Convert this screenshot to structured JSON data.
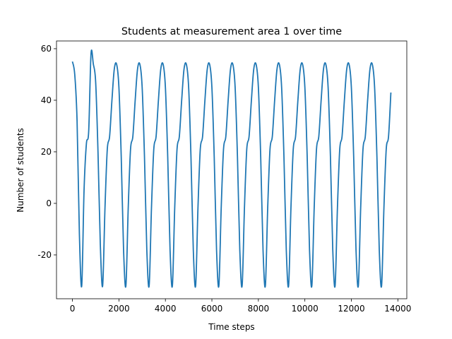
{
  "chart_data": {
    "type": "line",
    "title": "Students at measurement area 1 over time",
    "xlabel": "Time steps",
    "ylabel": "Number of students",
    "x": [
      0,
      100,
      200,
      300,
      400,
      500,
      600,
      700,
      800,
      900,
      1000,
      1100,
      1200,
      1300,
      1400,
      1500,
      1600,
      1700,
      1800,
      1900,
      2000,
      2100,
      2200,
      2300,
      2400,
      2500,
      2600,
      2700,
      2800,
      2900,
      3000,
      3100,
      3200,
      3300,
      3400,
      3500,
      3600,
      3700,
      3800,
      3900,
      4000,
      4100,
      4200,
      4300,
      4400,
      4500,
      4600,
      4700,
      4800,
      4900,
      5000,
      5100,
      5200,
      5300,
      5400,
      5500,
      5600,
      5700,
      5800,
      5900,
      6000,
      6100,
      6200,
      6300,
      6400,
      6500,
      6600,
      6700,
      6800,
      6900,
      7000,
      7100,
      7200,
      7300,
      7400,
      7500,
      7600,
      7700,
      7800,
      7900,
      8000,
      8100,
      8200,
      8300,
      8400,
      8500,
      8600,
      8700,
      8800,
      8900,
      9000,
      9100,
      9200,
      9300,
      9400,
      9500,
      9600,
      9700,
      9800,
      9900,
      10000,
      10100,
      10200,
      10300,
      10400,
      10500,
      10600,
      10700,
      10800,
      10900,
      11000,
      11100,
      11200,
      11300,
      11400,
      11500,
      11600,
      11700,
      11800,
      11900,
      12000,
      12100,
      12200,
      12300,
      12400,
      12500,
      12600,
      12700,
      12800,
      12900,
      13000,
      13100,
      13200,
      13300,
      13400,
      13500,
      13600,
      13700
    ],
    "series": [
      {
        "name": "students",
        "color": "#1f77b4",
        "values": [
          55,
          50,
          32,
          -12,
          -32,
          5,
          23,
          28,
          58,
          54,
          47,
          20,
          -16,
          -32,
          -2,
          21,
          26,
          40,
          52,
          54,
          45,
          18,
          -18,
          -32,
          -2,
          21,
          26,
          40,
          52,
          54,
          45,
          18,
          -18,
          -32,
          -2,
          21,
          26,
          40,
          52,
          54,
          45,
          18,
          -18,
          -32,
          -2,
          21,
          26,
          40,
          52,
          54,
          45,
          18,
          -18,
          -32,
          -2,
          21,
          26,
          40,
          52,
          54,
          45,
          18,
          -18,
          -32,
          -2,
          21,
          26,
          40,
          52,
          54,
          45,
          18,
          -18,
          -32,
          -2,
          21,
          26,
          40,
          52,
          54,
          45,
          18,
          -18,
          -32,
          -2,
          21,
          26,
          40,
          52,
          54,
          45,
          18,
          -18,
          -32,
          -2,
          21,
          26,
          40,
          52,
          54,
          45,
          18,
          -18,
          -32,
          -2,
          21,
          26,
          40,
          52,
          54,
          45,
          18,
          -18,
          -32,
          -2,
          21,
          26,
          40,
          52,
          54,
          45,
          18,
          -18,
          -32,
          -2,
          21,
          26,
          40,
          52,
          54,
          45,
          18,
          -18,
          -32,
          -2,
          21,
          26,
          43
        ]
      }
    ],
    "xlim": [
      -685,
      14385
    ],
    "ylim": [
      -37,
      63
    ],
    "xticks": [
      0,
      2000,
      4000,
      6000,
      8000,
      10000,
      12000,
      14000
    ],
    "yticks": [
      -20,
      0,
      20,
      40,
      60
    ],
    "grid": false
  }
}
